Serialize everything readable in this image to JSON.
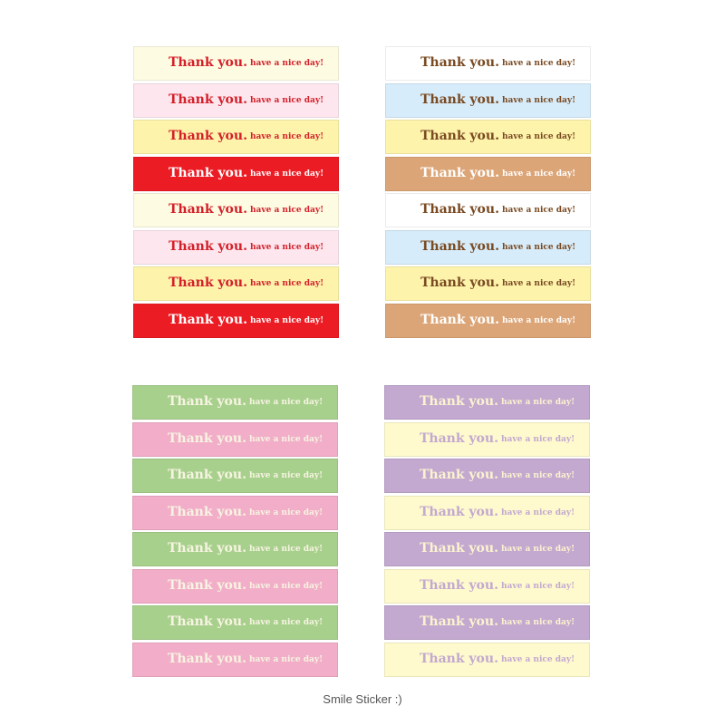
{
  "sheets": [
    {
      "stickers": [
        {
          "text": "Thank you.",
          "subtext": "have a nice day!",
          "background": "#fefbe3",
          "color": "#d4202a"
        },
        {
          "text": "Thank you.",
          "subtext": "have a nice day!",
          "background": "#fde6ee",
          "color": "#d4202a"
        },
        {
          "text": "Thank you.",
          "subtext": "have a nice day!",
          "background": "#fdf3ab",
          "color": "#d4202a"
        },
        {
          "text": "Thank you.",
          "subtext": "have a nice day!",
          "background": "#ec1c24",
          "color": "#ffffff"
        },
        {
          "text": "Thank you.",
          "subtext": "have a nice day!",
          "background": "#fefbe3",
          "color": "#d4202a"
        },
        {
          "text": "Thank you.",
          "subtext": "have a nice day!",
          "background": "#fde6ee",
          "color": "#d4202a"
        },
        {
          "text": "Thank you.",
          "subtext": "have a nice day!",
          "background": "#fdf3ab",
          "color": "#d4202a"
        },
        {
          "text": "Thank you.",
          "subtext": "have a nice day!",
          "background": "#ec1c24",
          "color": "#ffffff"
        }
      ]
    },
    {
      "stickers": [
        {
          "text": "Thank you.",
          "subtext": "have a nice day!",
          "background": "#ffffff",
          "color": "#7a4a22"
        },
        {
          "text": "Thank you.",
          "subtext": "have a nice day!",
          "background": "#d6ecfa",
          "color": "#7a4a22"
        },
        {
          "text": "Thank you.",
          "subtext": "have a nice day!",
          "background": "#fdf3ab",
          "color": "#7a4a22"
        },
        {
          "text": "Thank you.",
          "subtext": "have a nice day!",
          "background": "#dca577",
          "color": "#ffffff"
        },
        {
          "text": "Thank you.",
          "subtext": "have a nice day!",
          "background": "#ffffff",
          "color": "#7a4a22"
        },
        {
          "text": "Thank you.",
          "subtext": "have a nice day!",
          "background": "#d6ecfa",
          "color": "#7a4a22"
        },
        {
          "text": "Thank you.",
          "subtext": "have a nice day!",
          "background": "#fdf3ab",
          "color": "#7a4a22"
        },
        {
          "text": "Thank you.",
          "subtext": "have a nice day!",
          "background": "#dca577",
          "color": "#ffffff"
        }
      ]
    },
    {
      "stickers": [
        {
          "text": "Thank you.",
          "subtext": "have a nice day!",
          "background": "#a8d08d",
          "color": "#f7f4e2"
        },
        {
          "text": "Thank you.",
          "subtext": "have a nice day!",
          "background": "#f2aec8",
          "color": "#f7f4e2"
        },
        {
          "text": "Thank you.",
          "subtext": "have a nice day!",
          "background": "#a8d08d",
          "color": "#f7f4e2"
        },
        {
          "text": "Thank you.",
          "subtext": "have a nice day!",
          "background": "#f2aec8",
          "color": "#f7f4e2"
        },
        {
          "text": "Thank you.",
          "subtext": "have a nice day!",
          "background": "#a8d08d",
          "color": "#f7f4e2"
        },
        {
          "text": "Thank you.",
          "subtext": "have a nice day!",
          "background": "#f2aec8",
          "color": "#f7f4e2"
        },
        {
          "text": "Thank you.",
          "subtext": "have a nice day!",
          "background": "#a8d08d",
          "color": "#f7f4e2"
        },
        {
          "text": "Thank you.",
          "subtext": "have a nice day!",
          "background": "#f2aec8",
          "color": "#f7f4e2"
        }
      ]
    },
    {
      "stickers": [
        {
          "text": "Thank you.",
          "subtext": "have a nice day!",
          "background": "#c3a8d0",
          "color": "#fbf3cf"
        },
        {
          "text": "Thank you.",
          "subtext": "have a nice day!",
          "background": "#fefacd",
          "color": "#c3a8d0"
        },
        {
          "text": "Thank you.",
          "subtext": "have a nice day!",
          "background": "#c3a8d0",
          "color": "#fbf3cf"
        },
        {
          "text": "Thank you.",
          "subtext": "have a nice day!",
          "background": "#fefacd",
          "color": "#c3a8d0"
        },
        {
          "text": "Thank you.",
          "subtext": "have a nice day!",
          "background": "#c3a8d0",
          "color": "#fbf3cf"
        },
        {
          "text": "Thank you.",
          "subtext": "have a nice day!",
          "background": "#fefacd",
          "color": "#c3a8d0"
        },
        {
          "text": "Thank you.",
          "subtext": "have a nice day!",
          "background": "#c3a8d0",
          "color": "#fbf3cf"
        },
        {
          "text": "Thank you.",
          "subtext": "have a nice day!",
          "background": "#fefacd",
          "color": "#c3a8d0"
        }
      ]
    }
  ],
  "caption": "Smile Sticker :)"
}
